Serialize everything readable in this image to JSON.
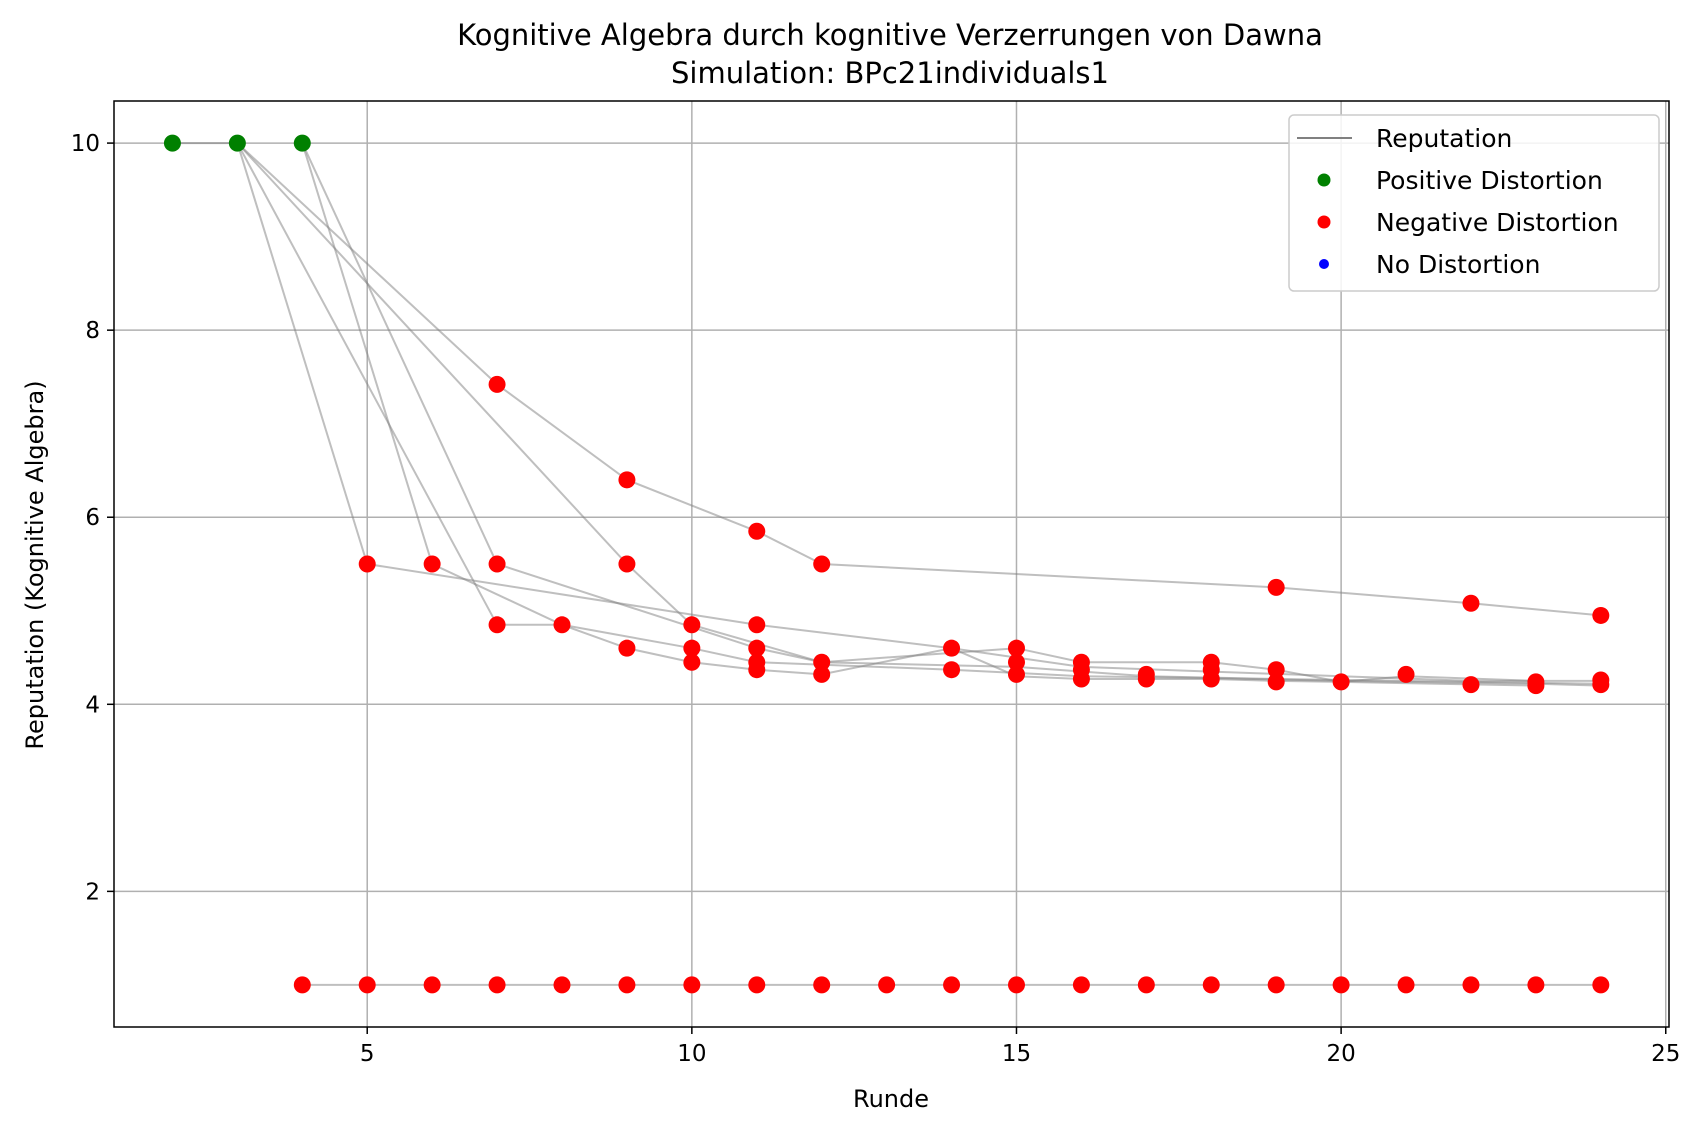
{
  "chart_data": {
    "type": "line",
    "title": "Kognitive Algebra durch kognitive Verzerrungen von Dawna",
    "subtitle": "Simulation: BPc21individuals1",
    "xlabel": "Runde",
    "ylabel": "Reputation (Kognitive Algebra)",
    "xlim": [
      1.1,
      25.05
    ],
    "ylim": [
      0.55,
      10.45
    ],
    "xticks": [
      5,
      10,
      15,
      20,
      25
    ],
    "yticks": [
      2,
      4,
      6,
      8,
      10
    ],
    "grid": true,
    "legend_position": "top-right",
    "legend": [
      {
        "label": "Reputation",
        "kind": "line",
        "color": "#808080"
      },
      {
        "label": "Positive Distortion",
        "kind": "marker",
        "color": "#008000"
      },
      {
        "label": "Negative Distortion",
        "kind": "marker",
        "color": "#ff0000"
      },
      {
        "label": "No Distortion",
        "kind": "marker",
        "color": "#0000ff"
      }
    ],
    "series": [
      {
        "points": [
          [
            2,
            10
          ],
          [
            3,
            10
          ],
          [
            7,
            4.85
          ],
          [
            8,
            4.85
          ],
          [
            10,
            4.6
          ],
          [
            11,
            4.45
          ],
          [
            14,
            4.37
          ],
          [
            16,
            4.3
          ],
          [
            18,
            4.28
          ],
          [
            20,
            4.25
          ],
          [
            23,
            4.22
          ],
          [
            24,
            4.2
          ]
        ]
      },
      {
        "points": [
          [
            3,
            10
          ],
          [
            5,
            5.5
          ],
          [
            11,
            4.85
          ],
          [
            14,
            4.6
          ],
          [
            16,
            4.4
          ],
          [
            18,
            4.35
          ],
          [
            20,
            4.3
          ],
          [
            22,
            4.25
          ],
          [
            24,
            4.25
          ]
        ]
      },
      {
        "points": [
          [
            3,
            10
          ],
          [
            9,
            5.5
          ],
          [
            10,
            4.85
          ],
          [
            12,
            4.45
          ],
          [
            15,
            4.4
          ],
          [
            17,
            4.3
          ],
          [
            19,
            4.27
          ],
          [
            21,
            4.25
          ],
          [
            24,
            4.22
          ]
        ]
      },
      {
        "points": [
          [
            4,
            10
          ],
          [
            6,
            5.5
          ],
          [
            8,
            4.85
          ],
          [
            9,
            4.6
          ],
          [
            10,
            4.45
          ],
          [
            11,
            4.37
          ],
          [
            12,
            4.32
          ],
          [
            14,
            4.6
          ],
          [
            15,
            4.3
          ],
          [
            16,
            4.27
          ],
          [
            18,
            4.27
          ],
          [
            19,
            4.25
          ],
          [
            20,
            4.24
          ],
          [
            23,
            4.2
          ]
        ]
      },
      {
        "points": [
          [
            4,
            10
          ],
          [
            7,
            5.5
          ],
          [
            11,
            4.6
          ],
          [
            12,
            4.45
          ],
          [
            15,
            4.6
          ],
          [
            16,
            4.45
          ],
          [
            18,
            4.45
          ],
          [
            19,
            4.37
          ],
          [
            20,
            4.24
          ],
          [
            21,
            4.3
          ],
          [
            23,
            4.25
          ]
        ]
      },
      {
        "points": [
          [
            3,
            10
          ],
          [
            7,
            7.42
          ],
          [
            9,
            6.4
          ],
          [
            11,
            5.85
          ],
          [
            12,
            5.5
          ],
          [
            19,
            5.25
          ],
          [
            22,
            5.08
          ],
          [
            24,
            4.95
          ]
        ]
      },
      {
        "points": [
          [
            4,
            1
          ],
          [
            24,
            1
          ]
        ]
      }
    ],
    "positive_distortion": [
      [
        2,
        10
      ],
      [
        3,
        10
      ],
      [
        4,
        10
      ]
    ],
    "negative_distortion": [
      [
        4,
        1
      ],
      [
        5,
        1
      ],
      [
        6,
        1
      ],
      [
        7,
        1
      ],
      [
        8,
        1
      ],
      [
        9,
        1
      ],
      [
        10,
        1
      ],
      [
        11,
        1
      ],
      [
        12,
        1
      ],
      [
        13,
        1
      ],
      [
        14,
        1
      ],
      [
        15,
        1
      ],
      [
        16,
        1
      ],
      [
        17,
        1
      ],
      [
        18,
        1
      ],
      [
        19,
        1
      ],
      [
        20,
        1
      ],
      [
        21,
        1
      ],
      [
        22,
        1
      ],
      [
        23,
        1
      ],
      [
        24,
        1
      ],
      [
        5,
        5.5
      ],
      [
        6,
        5.5
      ],
      [
        7,
        5.5
      ],
      [
        9,
        5.5
      ],
      [
        12,
        5.5
      ],
      [
        7,
        7.42
      ],
      [
        9,
        6.4
      ],
      [
        11,
        5.85
      ],
      [
        19,
        5.25
      ],
      [
        22,
        5.08
      ],
      [
        24,
        4.95
      ],
      [
        7,
        4.85
      ],
      [
        8,
        4.85
      ],
      [
        10,
        4.85
      ],
      [
        11,
        4.85
      ],
      [
        9,
        4.6
      ],
      [
        10,
        4.6
      ],
      [
        11,
        4.6
      ],
      [
        14,
        4.6
      ],
      [
        15,
        4.6
      ],
      [
        10,
        4.45
      ],
      [
        11,
        4.45
      ],
      [
        12,
        4.45
      ],
      [
        15,
        4.45
      ],
      [
        16,
        4.45
      ],
      [
        18,
        4.45
      ],
      [
        11,
        4.37
      ],
      [
        14,
        4.37
      ],
      [
        16,
        4.37
      ],
      [
        18,
        4.37
      ],
      [
        19,
        4.37
      ],
      [
        12,
        4.32
      ],
      [
        15,
        4.32
      ],
      [
        17,
        4.32
      ],
      [
        21,
        4.32
      ],
      [
        16,
        4.27
      ],
      [
        17,
        4.27
      ],
      [
        18,
        4.27
      ],
      [
        19,
        4.24
      ],
      [
        20,
        4.24
      ],
      [
        22,
        4.21
      ],
      [
        23,
        4.2
      ],
      [
        23,
        4.24
      ],
      [
        24,
        4.21
      ],
      [
        24,
        4.26
      ]
    ],
    "no_distortion": []
  }
}
